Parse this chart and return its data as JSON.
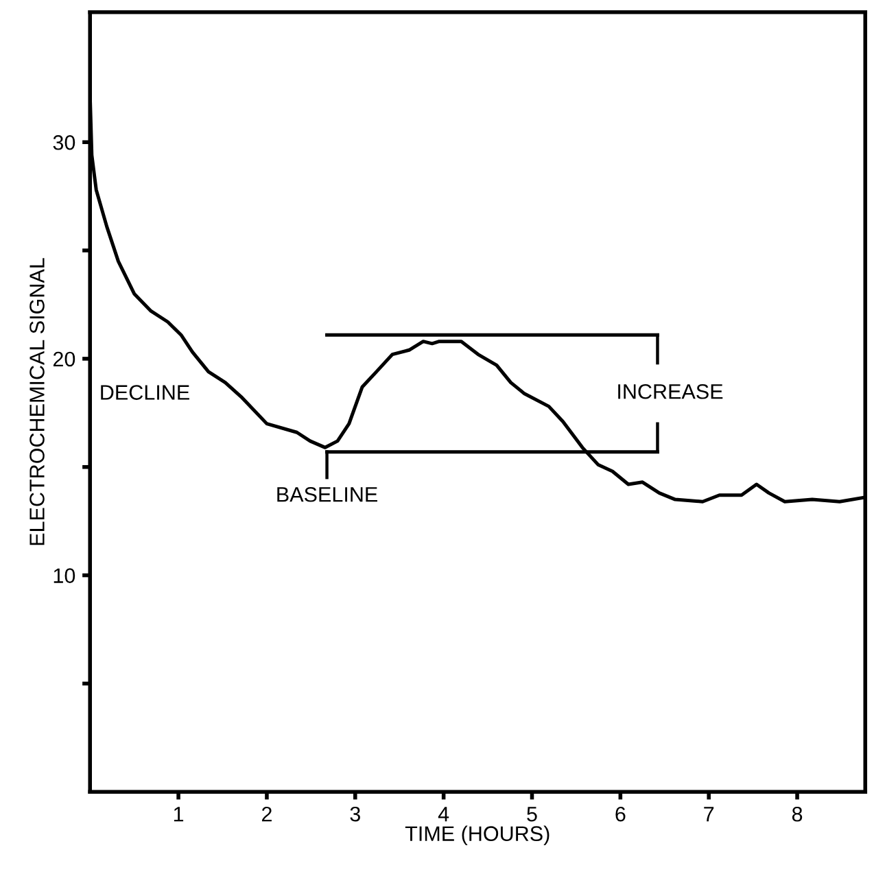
{
  "chart_data": {
    "type": "line",
    "xlabel": "TIME (HOURS)",
    "ylabel": "ELECTROCHEMICAL SIGNAL",
    "xlim": [
      0,
      8.77
    ],
    "ylim": [
      0,
      36
    ],
    "xticks": [
      1,
      2,
      3,
      4,
      5,
      6,
      7,
      8
    ],
    "yticks": [
      {
        "value": 5,
        "label": null
      },
      10,
      {
        "value": 15,
        "label": null
      },
      20,
      {
        "value": 25,
        "label": null
      },
      30
    ],
    "grid": false,
    "legend": false,
    "marker": "none",
    "line_style": "solid",
    "series": [
      {
        "color": "#000000",
        "x": [
          0,
          0.02,
          0.07,
          0.19,
          0.32,
          0.5,
          0.69,
          0.88,
          1.03,
          1.16,
          1.34,
          1.53,
          1.72,
          2.0,
          2.34,
          2.49,
          2.66,
          2.8,
          2.93,
          3.08,
          3.24,
          3.42,
          3.61,
          3.77,
          3.87,
          3.95,
          4.2,
          4.39,
          4.6,
          4.76,
          4.91,
          5.19,
          5.35,
          5.57,
          5.75,
          5.91,
          6.09,
          6.25,
          6.44,
          6.62,
          6.93,
          7.12,
          7.37,
          7.54,
          7.68,
          7.86,
          8.17,
          8.48,
          8.77
        ],
        "values": [
          32.2,
          29.4,
          27.8,
          26.1,
          24.5,
          23.0,
          22.2,
          21.7,
          21.1,
          20.3,
          19.4,
          18.9,
          18.2,
          17.0,
          16.6,
          16.2,
          15.9,
          16.2,
          17.0,
          18.7,
          19.4,
          20.2,
          20.4,
          20.8,
          20.7,
          20.8,
          20.8,
          20.2,
          19.7,
          18.9,
          18.4,
          17.8,
          17.1,
          15.9,
          15.1,
          14.8,
          14.2,
          14.3,
          13.8,
          13.5,
          13.4,
          13.7,
          13.7,
          14.2,
          13.8,
          13.4,
          13.5,
          13.4,
          13.6
        ]
      },
      {
        "color": "#000000",
        "x": [
          2.68,
          6.42
        ],
        "values": [
          21.1,
          21.1
        ]
      },
      {
        "color": "#000000",
        "x": [
          2.68,
          6.42
        ],
        "values": [
          15.7,
          15.7
        ]
      }
    ],
    "annotations": [
      "DECLINE",
      {
        "text": "BASELINE",
        "x": 2.68,
        "y": 15.7
      },
      "INCREASE"
    ]
  }
}
